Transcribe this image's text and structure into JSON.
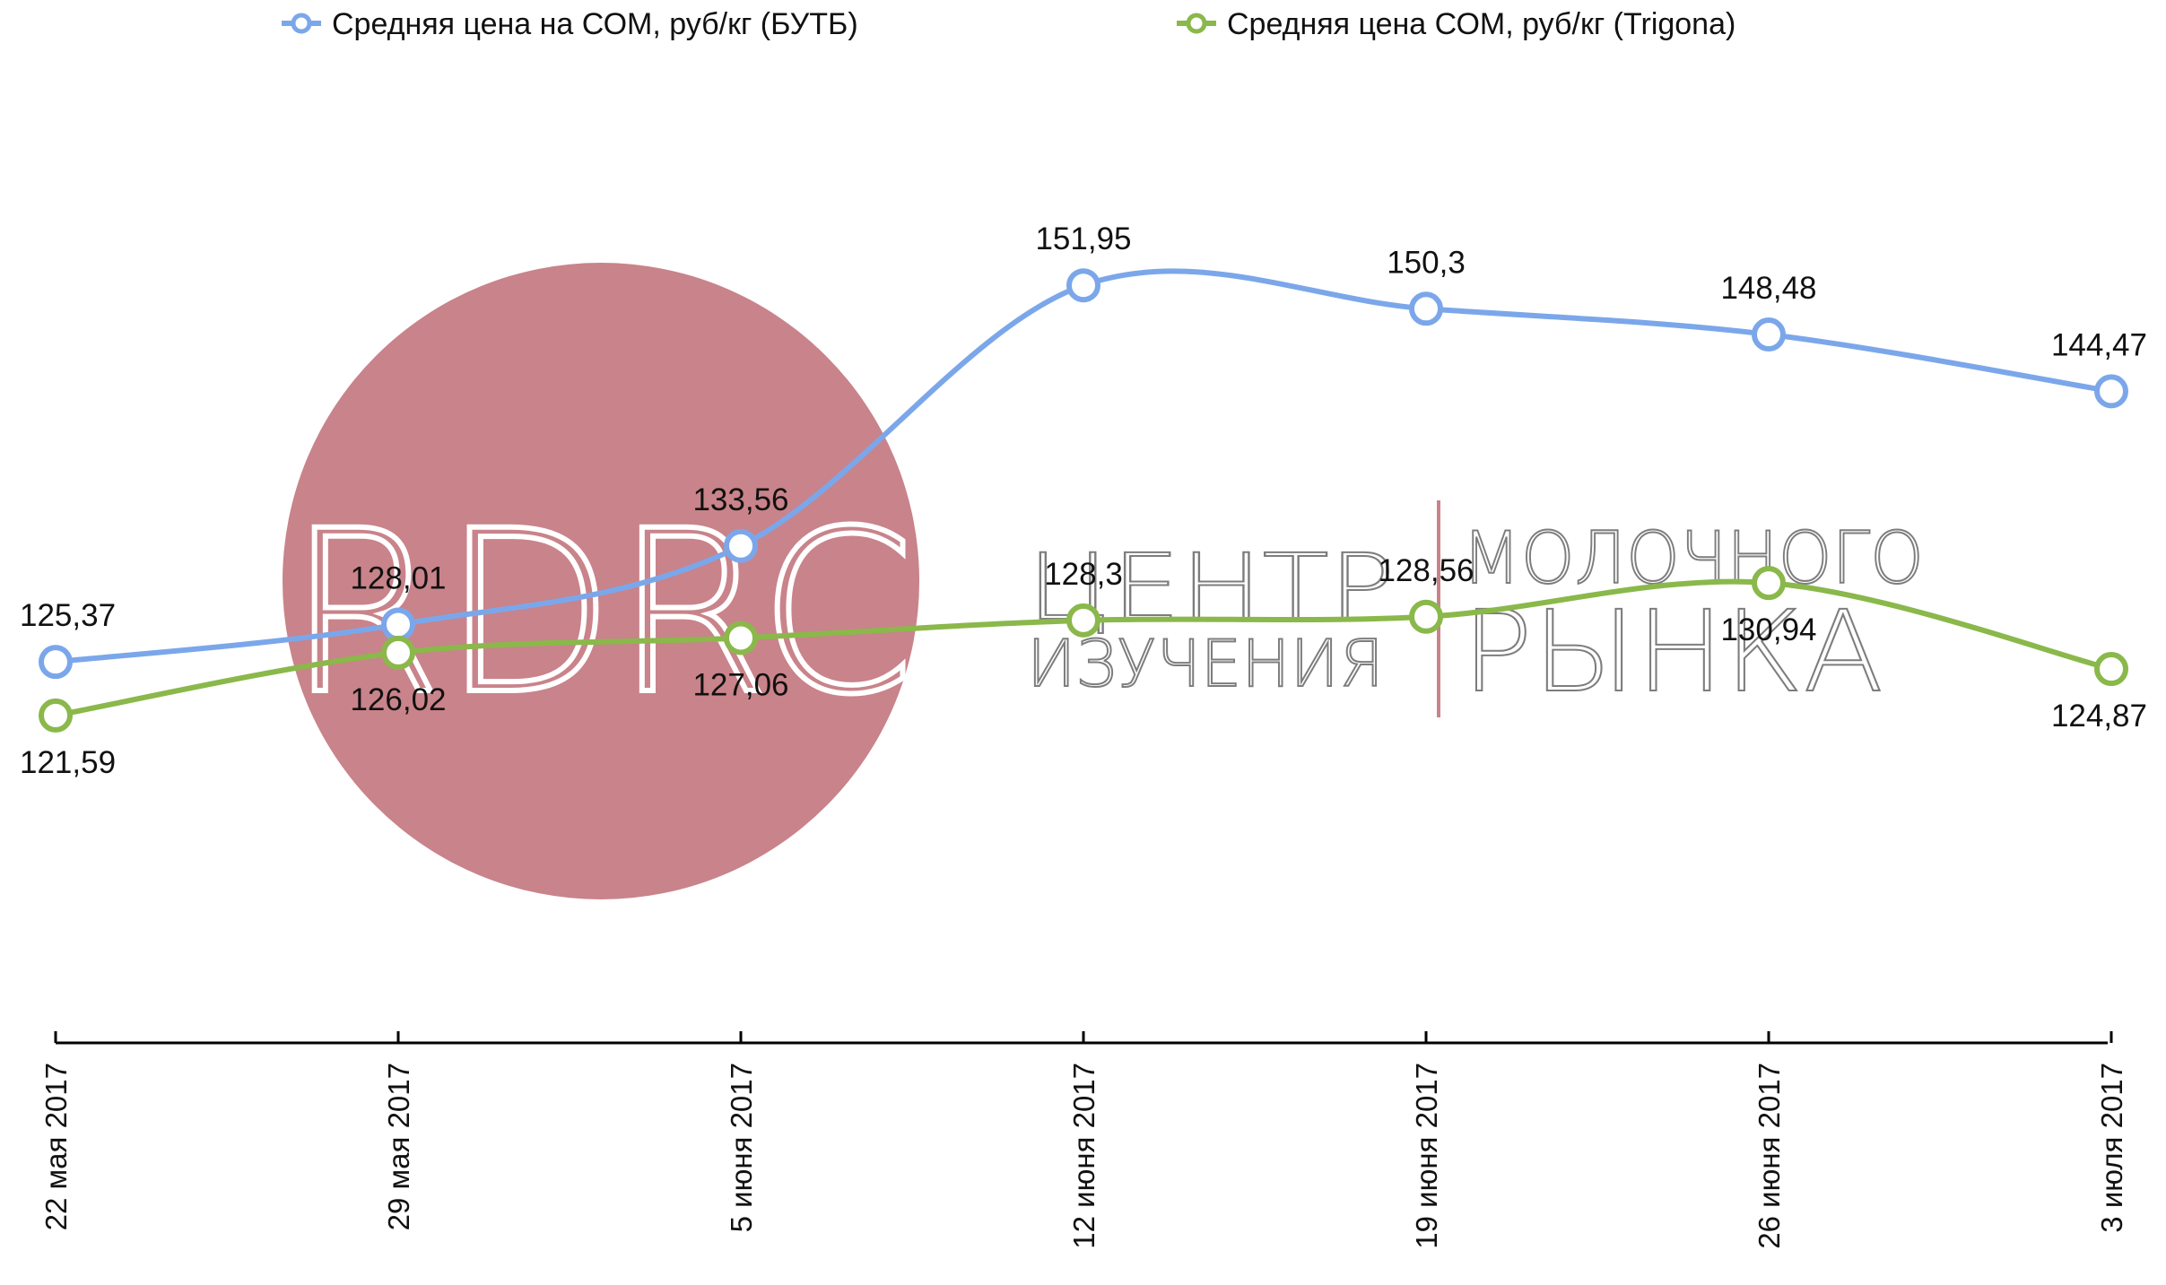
{
  "chart_data": {
    "type": "line",
    "title": "",
    "xlabel": "",
    "ylabel": "",
    "categories": [
      "22 мая 2017",
      "29 мая 2017",
      "5 июня 2017",
      "12 июня 2017",
      "19 июня 2017",
      "26 июня 2017",
      "3 июля 2017"
    ],
    "series": [
      {
        "name": "Средняя цена на СОМ, руб/кг (БУТБ)",
        "color": "#7ba7ea",
        "values": [
          125.37,
          128.01,
          133.56,
          151.95,
          150.3,
          148.48,
          144.47
        ],
        "labels": [
          "125,37",
          "128,01",
          "133,56",
          "151,95",
          "150,3",
          "148,48",
          "144,47"
        ]
      },
      {
        "name": "Средняя цена СОМ, руб/кг (Trigona)",
        "color": "#8ab84a",
        "values": [
          121.59,
          126.02,
          127.06,
          128.3,
          128.56,
          130.94,
          124.87
        ],
        "labels": [
          "121,59",
          "126,02",
          "127,06",
          "128,3",
          "128,56",
          "130,94",
          "124,87"
        ]
      }
    ],
    "ylim": [
      100,
      160
    ],
    "grid": false,
    "legend": "top",
    "smooth": true
  },
  "watermark": {
    "logo_text": "RDRC",
    "line1": "ЦЕНТР",
    "line1b": "МОЛОЧНОГО",
    "line2": "ИЗУЧЕНИЯ",
    "line2b": "РЫНКА",
    "circle_color": "#c9838a",
    "divider_color": "#c9838a"
  }
}
